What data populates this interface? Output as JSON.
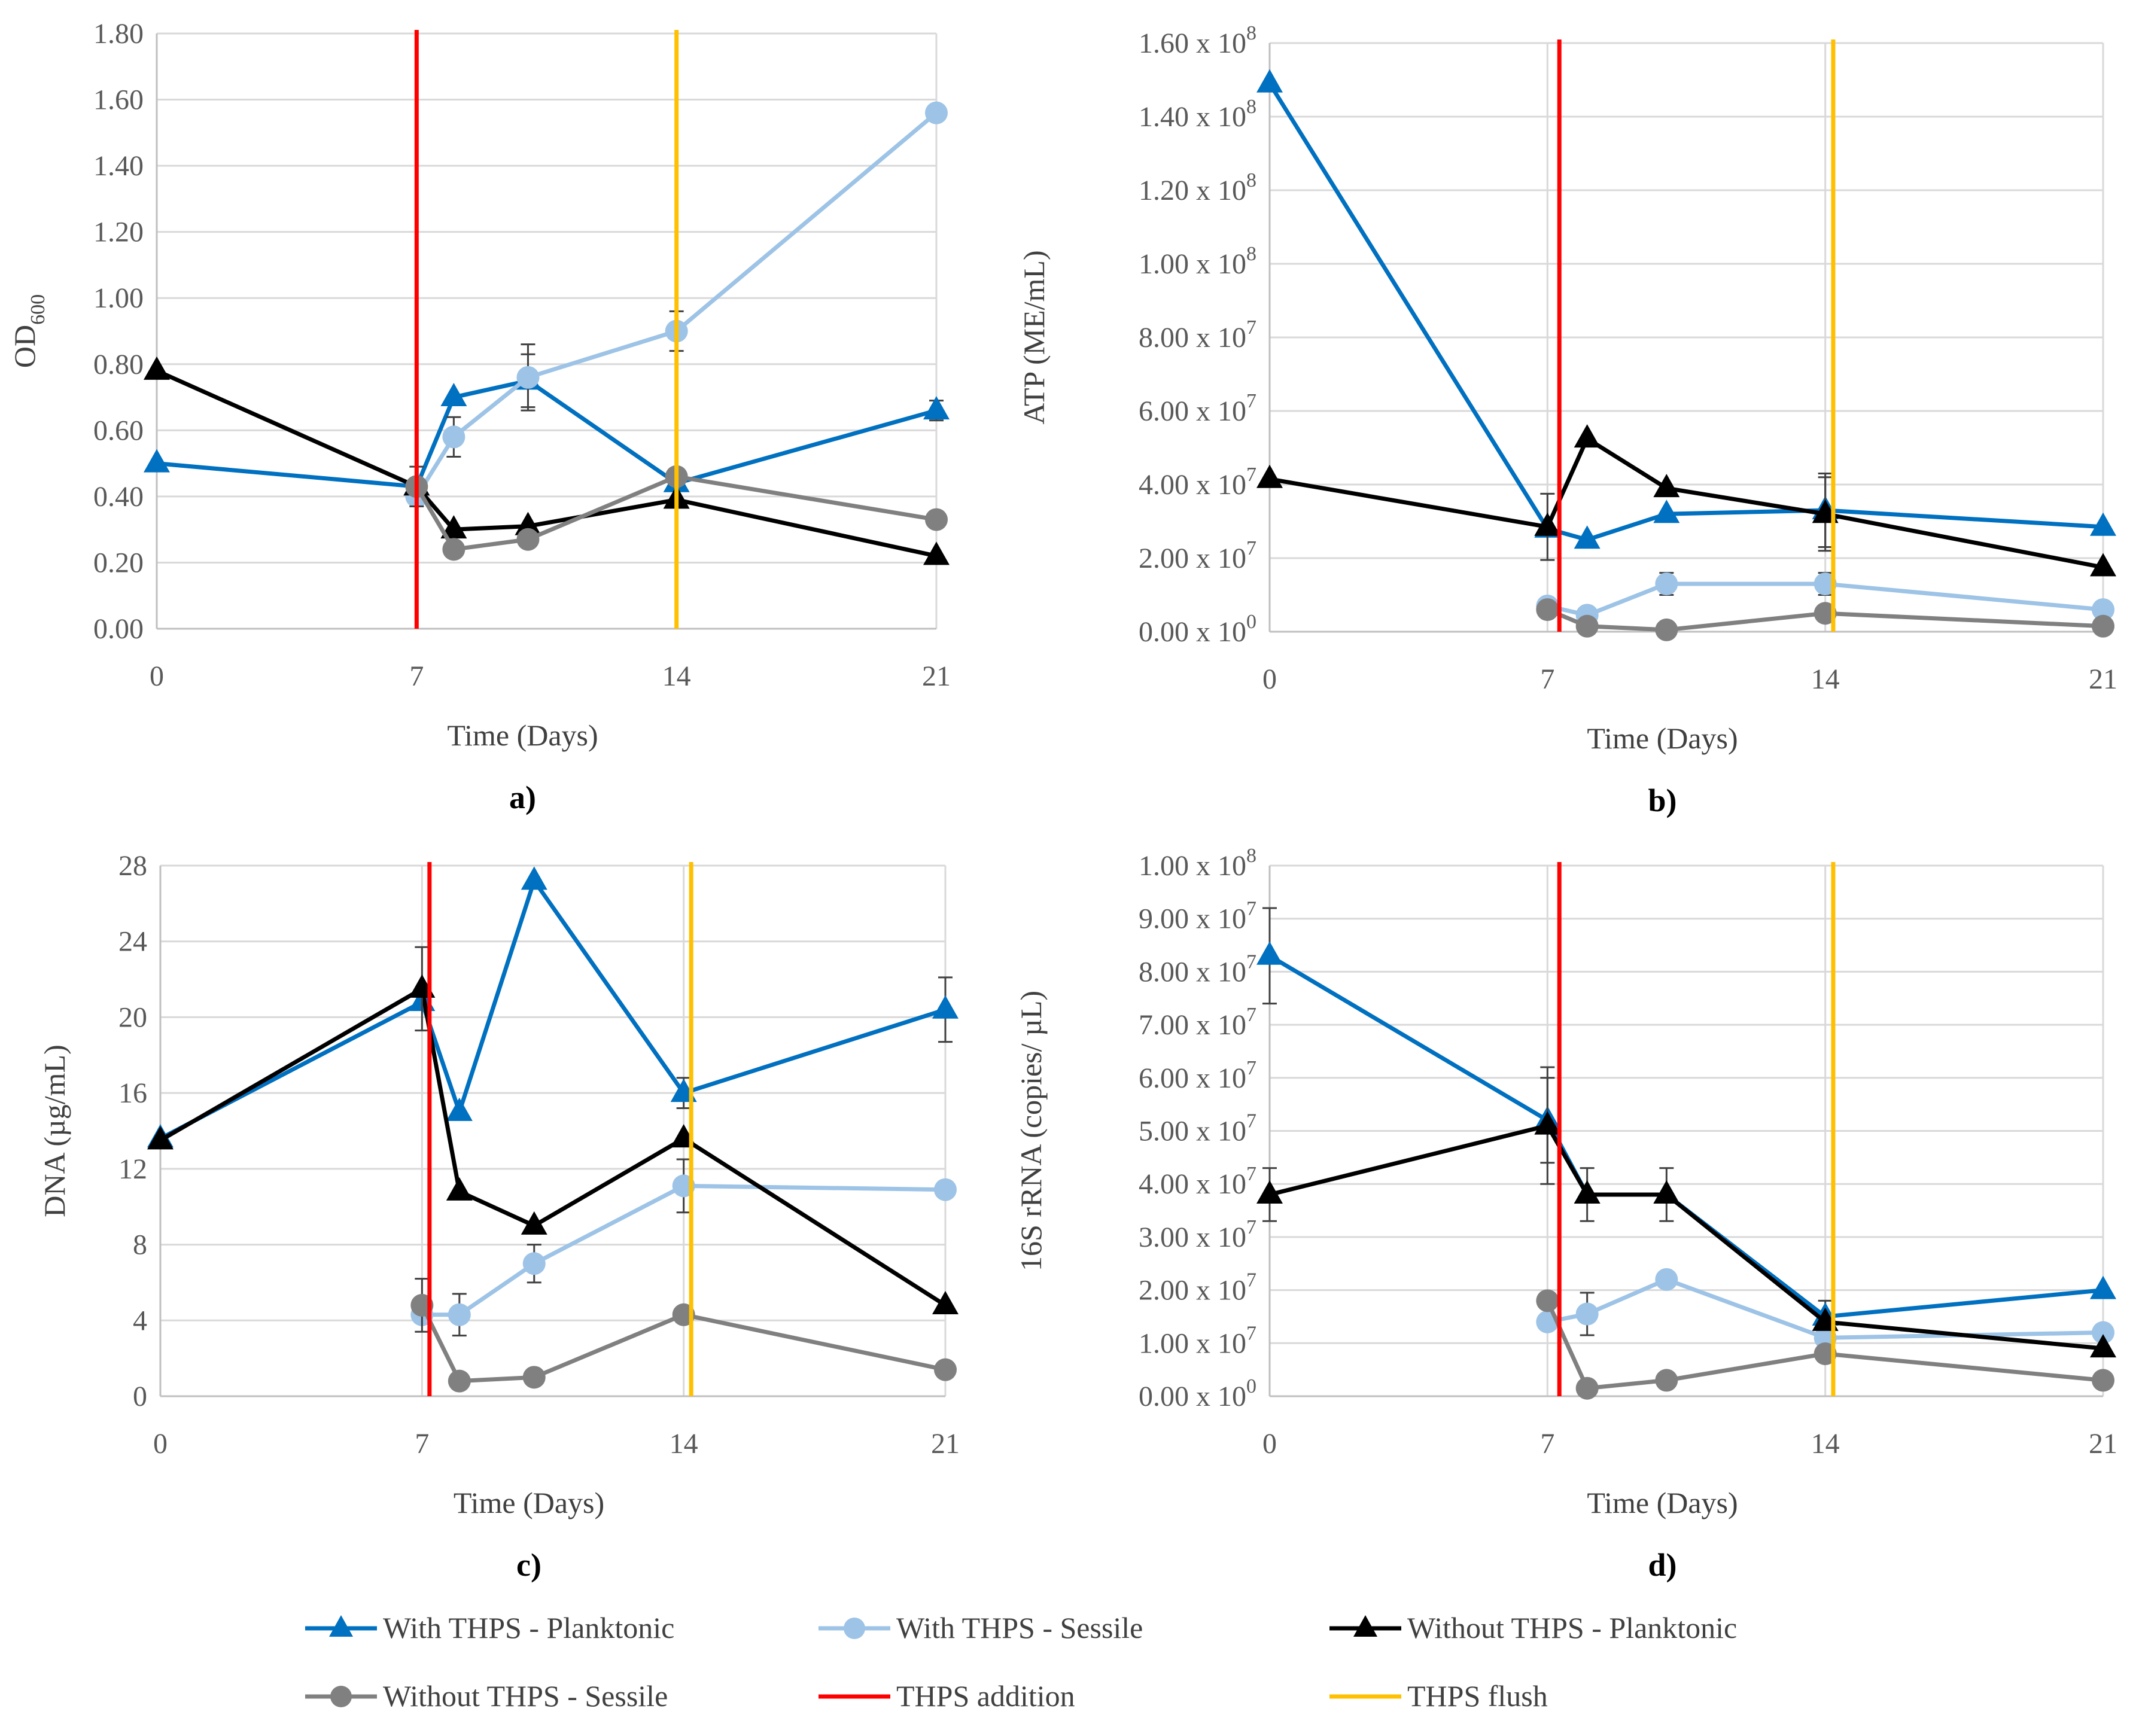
{
  "colors": {
    "with_planktonic": "#0070c0",
    "with_sessile": "#9dc3e6",
    "without_planktonic": "#000000",
    "without_sessile": "#808080",
    "thps_addition": "#ff0000",
    "thps_flush": "#ffc000",
    "errorbar": "#404040"
  },
  "legend": [
    {
      "label": "With THPS - Planktonic",
      "color": "#0070c0",
      "marker": "triangle",
      "kind": "series"
    },
    {
      "label": "With THPS - Sessile",
      "color": "#9dc3e6",
      "marker": "circle",
      "kind": "series"
    },
    {
      "label": "Without THPS - Planktonic",
      "color": "#000000",
      "marker": "triangle",
      "kind": "series"
    },
    {
      "label": "Without THPS - Sessile",
      "color": "#808080",
      "marker": "circle",
      "kind": "series"
    },
    {
      "label": "THPS addition",
      "color": "#ff0000",
      "marker": "none",
      "kind": "line"
    },
    {
      "label": "THPS flush",
      "color": "#ffc000",
      "marker": "none",
      "kind": "line"
    }
  ],
  "chart_data": [
    {
      "type": "line",
      "panel_label": "a)",
      "xlabel": "Time (Days)",
      "ylabel": {
        "main": "OD",
        "sub": "600"
      },
      "xlim": [
        0,
        21
      ],
      "xticks": [
        0,
        7,
        14,
        21
      ],
      "ylim": [
        0,
        1.8
      ],
      "yticks": [
        0,
        0.2,
        0.4,
        0.6,
        0.8,
        1.0,
        1.2,
        1.4,
        1.6,
        1.8
      ],
      "ytick_labels": [
        "0.00",
        "0.20",
        "0.40",
        "0.60",
        "0.80",
        "1.00",
        "1.20",
        "1.40",
        "1.60",
        "1.80"
      ],
      "vlines": [
        {
          "name": "THPS addition",
          "x": 7.0
        },
        {
          "name": "THPS flush",
          "x": 14.0
        }
      ],
      "series": [
        {
          "name": "With THPS - Planktonic",
          "marker": "triangle",
          "x": [
            0,
            7,
            8,
            10,
            14,
            21
          ],
          "y": [
            0.5,
            0.43,
            0.7,
            0.75,
            0.44,
            0.66
          ],
          "err": [
            0,
            0,
            0,
            0.08,
            0,
            0.03
          ]
        },
        {
          "name": "With THPS - Sessile",
          "marker": "circle",
          "x": [
            7,
            8,
            10,
            14,
            21
          ],
          "y": [
            0.4,
            0.58,
            0.76,
            0.9,
            1.56
          ],
          "err": [
            0,
            0.06,
            0.1,
            0.06,
            0
          ]
        },
        {
          "name": "Without THPS - Planktonic",
          "marker": "triangle",
          "x": [
            0,
            7,
            8,
            10,
            14,
            21
          ],
          "y": [
            0.78,
            0.43,
            0.3,
            0.31,
            0.39,
            0.22
          ],
          "err": [
            0,
            0.06,
            0,
            0,
            0,
            0
          ]
        },
        {
          "name": "Without THPS - Sessile",
          "marker": "circle",
          "x": [
            7,
            8,
            10,
            14,
            21
          ],
          "y": [
            0.43,
            0.24,
            0.27,
            0.46,
            0.33
          ],
          "err": [
            0,
            0,
            0,
            0,
            0
          ]
        }
      ]
    },
    {
      "type": "line",
      "panel_label": "b)",
      "xlabel": "Time (Days)",
      "ylabel": {
        "main": "ATP (ME/mL)"
      },
      "xlim": [
        0,
        21
      ],
      "xticks": [
        0,
        7,
        14,
        21
      ],
      "ylim": [
        0,
        160000000
      ],
      "yticks": [
        0,
        20000000,
        40000000,
        60000000,
        80000000,
        100000000,
        120000000,
        140000000,
        160000000
      ],
      "ytick_labels": [
        {
          "mant": "0.00",
          "exp": "0"
        },
        {
          "mant": "2.00",
          "exp": "7"
        },
        {
          "mant": "4.00",
          "exp": "7"
        },
        {
          "mant": "6.00",
          "exp": "7"
        },
        {
          "mant": "8.00",
          "exp": "7"
        },
        {
          "mant": "1.00",
          "exp": "8"
        },
        {
          "mant": "1.20",
          "exp": "8"
        },
        {
          "mant": "1.40",
          "exp": "8"
        },
        {
          "mant": "1.60",
          "exp": "8"
        }
      ],
      "vlines": [
        {
          "name": "THPS addition",
          "x": 7.3
        },
        {
          "name": "THPS flush",
          "x": 14.2
        }
      ],
      "series": [
        {
          "name": "With THPS - Planktonic",
          "marker": "triangle",
          "x": [
            0,
            7,
            8,
            10,
            14,
            21
          ],
          "y": [
            149000000,
            28000000,
            25000000,
            32000000,
            33000000,
            28500000
          ],
          "err": [
            0,
            0,
            0,
            0,
            10000000,
            0
          ]
        },
        {
          "name": "With THPS - Sessile",
          "marker": "circle",
          "x": [
            7,
            8,
            10,
            14,
            21
          ],
          "y": [
            7000000,
            4500000,
            13000000,
            13000000,
            6000000
          ],
          "err": [
            0,
            0,
            3000000,
            3000000,
            0
          ]
        },
        {
          "name": "Without THPS - Planktonic",
          "marker": "triangle",
          "x": [
            0,
            7,
            8,
            10,
            14,
            21
          ],
          "y": [
            41500000,
            28500000,
            52500000,
            39000000,
            32000000,
            17500000
          ],
          "err": [
            0,
            9000000,
            0,
            0,
            10000000,
            0
          ]
        },
        {
          "name": "Without THPS - Sessile",
          "marker": "circle",
          "x": [
            7,
            8,
            10,
            14,
            21
          ],
          "y": [
            6000000,
            1500000,
            500000,
            5000000,
            1500000
          ],
          "err": [
            0,
            0,
            0,
            0,
            0
          ]
        }
      ]
    },
    {
      "type": "line",
      "panel_label": "c)",
      "xlabel": "Time (Days)",
      "ylabel": {
        "main": "DNA (µg/mL)"
      },
      "xlim": [
        0,
        21
      ],
      "xticks": [
        0,
        7,
        14,
        21
      ],
      "ylim": [
        0,
        28
      ],
      "yticks": [
        0,
        4,
        8,
        12,
        16,
        20,
        24,
        28
      ],
      "ytick_labels": [
        "0",
        "4",
        "8",
        "12",
        "16",
        "20",
        "24",
        "28"
      ],
      "vlines": [
        {
          "name": "THPS addition",
          "x": 7.2
        },
        {
          "name": "THPS flush",
          "x": 14.2
        }
      ],
      "series": [
        {
          "name": "With THPS - Planktonic",
          "marker": "triangle",
          "x": [
            0,
            7,
            8,
            10,
            14,
            21
          ],
          "y": [
            13.6,
            20.8,
            15.0,
            27.2,
            16.0,
            20.4
          ],
          "err": [
            0,
            0,
            0,
            0,
            0.8,
            1.7
          ]
        },
        {
          "name": "With THPS - Sessile",
          "marker": "circle",
          "x": [
            7,
            8,
            10,
            14,
            21
          ],
          "y": [
            4.3,
            4.3,
            7.0,
            11.1,
            10.9
          ],
          "err": [
            0,
            1.1,
            1.0,
            1.4,
            0
          ]
        },
        {
          "name": "Without THPS - Planktonic",
          "marker": "triangle",
          "x": [
            0,
            7,
            8,
            10,
            14,
            21
          ],
          "y": [
            13.5,
            21.5,
            10.8,
            9.0,
            13.6,
            4.8
          ],
          "err": [
            0,
            2.2,
            0,
            0,
            0,
            0
          ]
        },
        {
          "name": "Without THPS - Sessile",
          "marker": "circle",
          "x": [
            7,
            8,
            10,
            14,
            21
          ],
          "y": [
            4.8,
            0.8,
            1.0,
            4.3,
            1.4
          ],
          "err": [
            1.4,
            0,
            0,
            0,
            0
          ]
        }
      ]
    },
    {
      "type": "line",
      "panel_label": "d)",
      "xlabel": "Time (Days)",
      "ylabel": {
        "main": "16S rRNA (copies/ µL)"
      },
      "xlim": [
        0,
        21
      ],
      "xticks": [
        0,
        7,
        14,
        21
      ],
      "ylim": [
        0,
        100000000
      ],
      "yticks": [
        0,
        10000000,
        20000000,
        30000000,
        40000000,
        50000000,
        60000000,
        70000000,
        80000000,
        90000000,
        100000000
      ],
      "ytick_labels": [
        {
          "mant": "0.00",
          "exp": "0"
        },
        {
          "mant": "1.00",
          "exp": "7"
        },
        {
          "mant": "2.00",
          "exp": "7"
        },
        {
          "mant": "3.00",
          "exp": "7"
        },
        {
          "mant": "4.00",
          "exp": "7"
        },
        {
          "mant": "5.00",
          "exp": "7"
        },
        {
          "mant": "6.00",
          "exp": "7"
        },
        {
          "mant": "7.00",
          "exp": "7"
        },
        {
          "mant": "8.00",
          "exp": "7"
        },
        {
          "mant": "9.00",
          "exp": "7"
        },
        {
          "mant": "1.00",
          "exp": "8"
        }
      ],
      "vlines": [
        {
          "name": "THPS addition",
          "x": 7.3
        },
        {
          "name": "THPS flush",
          "x": 14.2
        }
      ],
      "series": [
        {
          "name": "With THPS - Planktonic",
          "marker": "triangle",
          "x": [
            0,
            7,
            8,
            10,
            14,
            21
          ],
          "y": [
            83000000,
            52000000,
            38000000,
            38000000,
            15000000,
            20000000
          ],
          "err": [
            9000000,
            8000000,
            0,
            0,
            3000000,
            0
          ]
        },
        {
          "name": "With THPS - Sessile",
          "marker": "circle",
          "x": [
            7,
            8,
            10,
            14,
            21
          ],
          "y": [
            14000000,
            15500000,
            22000000,
            11000000,
            12000000
          ],
          "err": [
            0,
            4000000,
            0,
            0,
            0
          ]
        },
        {
          "name": "Without THPS - Planktonic",
          "marker": "triangle",
          "x": [
            0,
            7,
            8,
            10,
            14,
            21
          ],
          "y": [
            38000000,
            51000000,
            38000000,
            38000000,
            14000000,
            9000000
          ],
          "err": [
            5000000,
            11000000,
            5000000,
            5000000,
            0,
            0
          ]
        },
        {
          "name": "Without THPS - Sessile",
          "marker": "circle",
          "x": [
            7,
            8,
            10,
            14,
            21
          ],
          "y": [
            18000000,
            1500000,
            3000000,
            8000000,
            3000000
          ],
          "err": [
            0,
            0,
            0,
            0,
            0
          ]
        }
      ]
    }
  ]
}
